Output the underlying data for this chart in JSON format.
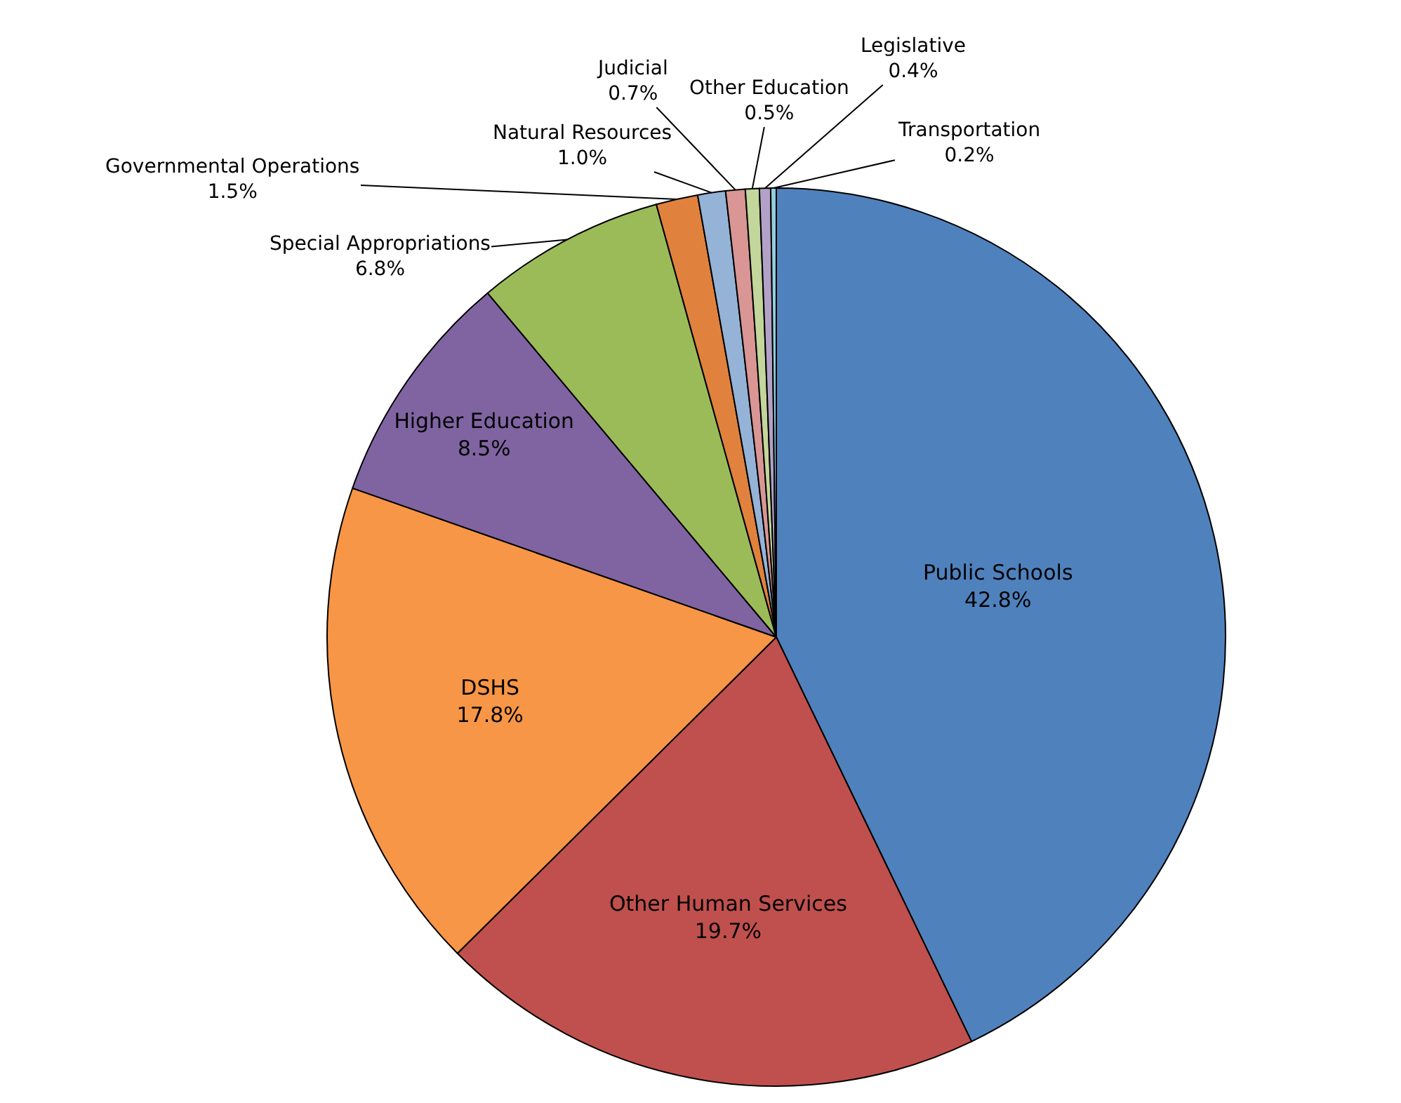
{
  "chart_data": {
    "type": "pie",
    "categories": [
      "Public Schools",
      "Other Human Services",
      "DSHS",
      "Higher Education",
      "Special Appropriations",
      "Governmental Operations",
      "Natural Resources",
      "Judicial",
      "Other Education",
      "Legislative",
      "Transportation"
    ],
    "values": [
      42.8,
      19.7,
      17.8,
      8.5,
      6.8,
      1.5,
      1.0,
      0.7,
      0.5,
      0.4,
      0.2
    ],
    "value_labels": [
      "42.8%",
      "19.7%",
      "17.8%",
      "8.5%",
      "6.8%",
      "1.5%",
      "1.0%",
      "0.7%",
      "0.5%",
      "0.4%",
      "0.2%"
    ],
    "colors": [
      "#4f81bd",
      "#c0504d",
      "#f79646",
      "#8064a2",
      "#9bbb59",
      "#e0823d",
      "#95b3d7",
      "#d99694",
      "#c3d69b",
      "#b3a2c7",
      "#93cddd"
    ],
    "legend": false
  }
}
